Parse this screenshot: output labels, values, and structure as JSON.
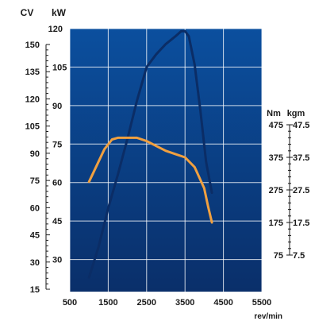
{
  "chart_data": {
    "type": "line",
    "colors": {
      "plot_background_top": "#0b4f9e",
      "plot_background_bottom": "#0a2f6a",
      "grid": "#ffffff",
      "power_line": "#0b2d66",
      "torque_line": "#f0a040"
    },
    "grid": true,
    "x_axis": {
      "label": "rev/min",
      "range": [
        500,
        5500
      ],
      "ticks": [
        "500",
        "1500",
        "2500",
        "3500",
        "4500",
        "5500"
      ]
    },
    "axis_cv": {
      "label": "CV",
      "range": [
        15,
        150
      ],
      "ticks": [
        "15",
        "30",
        "45",
        "60",
        "75",
        "90",
        "105",
        "120",
        "135",
        "150"
      ]
    },
    "axis_kw": {
      "label": "kW",
      "range": [
        15,
        120
      ],
      "ticks": [
        "30",
        "45",
        "60",
        "75",
        "90",
        "105",
        "120"
      ]
    },
    "axis_nm": {
      "label": "Nm",
      "range": [
        75,
        475
      ],
      "ticks": [
        "75",
        "175",
        "275",
        "375",
        "475"
      ]
    },
    "axis_kgm": {
      "label": "kgm",
      "range": [
        7.5,
        47.5
      ],
      "ticks": [
        "7.5",
        "17.5",
        "27.5",
        "37.5",
        "47.5"
      ]
    },
    "series": [
      {
        "axis": "kw",
        "x": [
          1000,
          1250,
          1500,
          1750,
          2000,
          2250,
          2500,
          2750,
          3000,
          3250,
          3400,
          3500,
          3600,
          3750,
          3900,
          4050,
          4200
        ],
        "y": [
          23,
          35,
          50,
          63,
          77,
          92,
          105,
          110,
          114,
          117,
          119,
          119,
          117,
          106,
          88,
          68,
          56
        ]
      },
      {
        "axis": "nm",
        "x": [
          1000,
          1200,
          1400,
          1600,
          1750,
          2000,
          2250,
          2500,
          2750,
          3000,
          3250,
          3500,
          3750,
          4000,
          4100,
          4200
        ],
        "y": [
          300,
          350,
          400,
          430,
          435,
          435,
          435,
          425,
          410,
          395,
          385,
          375,
          345,
          280,
          225,
          175
        ]
      }
    ]
  }
}
